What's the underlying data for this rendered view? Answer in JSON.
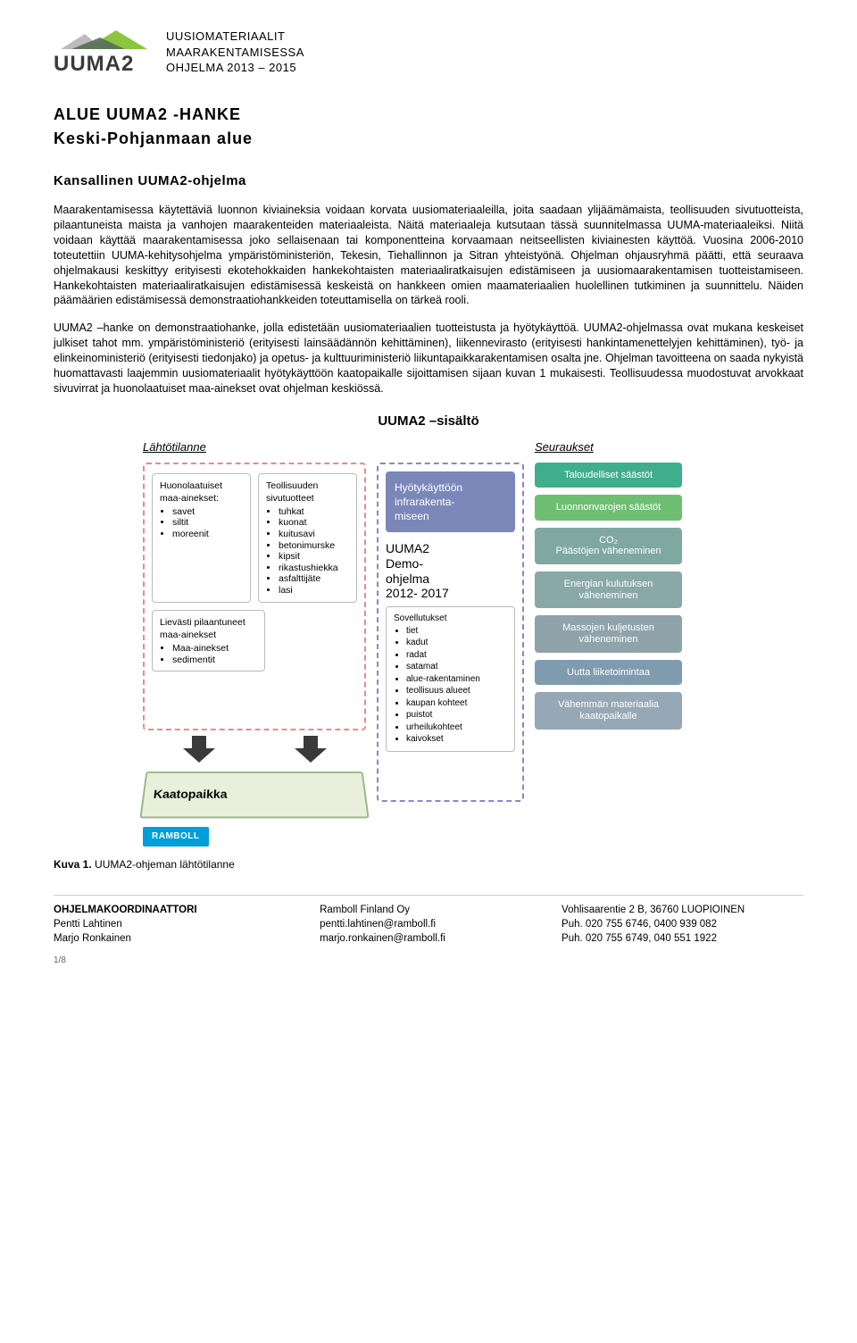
{
  "header": {
    "logo_text": "UUMA2",
    "line1": "UUSIOMATERIAALIT",
    "line2": "MAARAKENTAMISESSA",
    "line3": "OHJELMA 2013 – 2015"
  },
  "title_line1": "ALUE UUMA2 -HANKE",
  "title_line2": "Keski-Pohjanmaan alue",
  "section_heading": "Kansallinen UUMA2-ohjelma",
  "para1": "Maarakentamisessa käytettäviä luonnon kiviaineksia voidaan korvata uusiomateriaaleilla, joita saadaan ylijäämämaista, teollisuuden sivutuotteista, pilaantuneista maista ja vanhojen maarakenteiden materiaaleista. Näitä materiaaleja kutsutaan tässä suunnitelmassa UUMA-materiaaleiksi. Niitä voidaan käyttää maarakentamisessa joko sellaisenaan tai komponentteina korvaamaan neitseellisten kiviainesten käyttöä. Vuosina 2006-2010 toteutettiin UUMA-kehitysohjelma ympäristöministeriön, Tekesin, Tiehallinnon ja Sitran yhteistyönä. Ohjelman ohjausryhmä päätti, että seuraava ohjelmakausi keskittyy erityisesti ekotehokkaiden hankekohtaisten materiaaliratkaisujen edistämiseen ja uusiomaarakentamisen tuotteistamiseen. Hankekohtaisten materiaaliratkaisujen edistämisessä keskeistä on hankkeen omien maamateriaalien huolellinen tutkiminen ja suunnittelu. Näiden päämäärien edistämisessä demonstraatiohankkeiden toteuttamisella on tärkeä rooli.",
  "para2": "UUMA2 –hanke on demonstraatiohanke, jolla edistetään uusiomateriaalien tuotteistusta ja hyötykäyttöä. UUMA2-ohjelmassa ovat mukana keskeiset julkiset tahot mm. ympäristöministeriö (erityisesti lainsäädännön kehittäminen), liikennevirasto (erityisesti hankintamenettelyjen kehittäminen), työ- ja elinkeinoministeriö (erityisesti tiedonjako) ja opetus- ja kulttuuriministeriö liikuntapaikkarakentamisen osalta jne. Ohjelman tavoitteena on saada nykyistä huomattavasti laajemmin uusiomateriaalit hyötykäyttöön kaatopaikalle sijoittamisen sijaan kuvan 1 mukaisesti. Teollisuudessa muodostuvat arvokkaat sivuvirrat ja huonolaatuiset maa-ainekset ovat ohjelman keskiössä.",
  "diagram": {
    "title": "UUMA2 –sisältö",
    "left": {
      "heading": "Lähtötilanne",
      "box_huono": {
        "title": "Huonolaatuiset maa-ainekset:",
        "items": [
          "savet",
          "siltit",
          "moreenit"
        ]
      },
      "box_teoll": {
        "title": "Teollisuuden sivutuotteet",
        "items": [
          "tuhkat",
          "kuonat",
          "kuitusavi",
          "betonimurske",
          "kipsit",
          "rikastushiekka",
          "asfalttijäte",
          "lasi"
        ]
      },
      "box_liev": {
        "title": "Lievästi pilaantuneet maa-ainekset",
        "items": [
          "Maa-ainekset",
          "sedimentit"
        ]
      },
      "kaato": "Kaatopaikka",
      "ramboll": "RAMBOLL"
    },
    "mid": {
      "top_box": "Hyötykäyttöön infrarakenta-\nmiseen",
      "prog_title": "UUMA2\nDemo-\nohjelma\n2012- 2017",
      "sovel_title": "Sovellutukset",
      "sovel_items": [
        "tiet",
        "kadut",
        "radat",
        "satamat",
        "alue-rakentaminen",
        "teollisuus alueet",
        "kaupan kohteet",
        "puistot",
        "urheilukohteet",
        "kaivokset"
      ]
    },
    "right": {
      "heading": "Seuraukset",
      "boxes": [
        {
          "text": "Taloudelliset säästöt",
          "color": "#3fae8c"
        },
        {
          "text": "Luonnonvarojen säästöt",
          "color": "#6fbf73"
        },
        {
          "text": "CO₂\nPäästöjen väheneminen",
          "color": "#7fa8a0"
        },
        {
          "text": "Energian kulutuksen väheneminen",
          "color": "#8aa8a8"
        },
        {
          "text": "Massojen kuljetusten väheneminen",
          "color": "#8fa3ab"
        },
        {
          "text": "Uutta liiketoimintaa",
          "color": "#7f9bb0"
        },
        {
          "text": "Vähemmän materiaalia kaatopaikalle",
          "color": "#96a8b5"
        }
      ]
    }
  },
  "caption_label": "Kuva 1.",
  "caption_text": " UUMA2-ohjeman lähtötilanne",
  "footer": {
    "col1": {
      "l1": "OHJELMAKOORDINAATTORI",
      "l2": "Pentti Lahtinen",
      "l3": "Marjo Ronkainen"
    },
    "col2": {
      "l1": "Ramboll Finland Oy",
      "l2": "pentti.lahtinen@ramboll.fi",
      "l3": "marjo.ronkainen@ramboll.fi"
    },
    "col3": {
      "l1": "Vohlisaarentie 2 B, 36760 LUOPIOINEN",
      "l2": "Puh. 020 755 6746, 0400 939 082",
      "l3": "Puh. 020 755 6749, 040 551 1922"
    }
  },
  "page_num": "1/8",
  "logo_colors": {
    "green": "#8bc63e",
    "dark": "#5a6b5a",
    "grey": "#bcbcbc"
  }
}
